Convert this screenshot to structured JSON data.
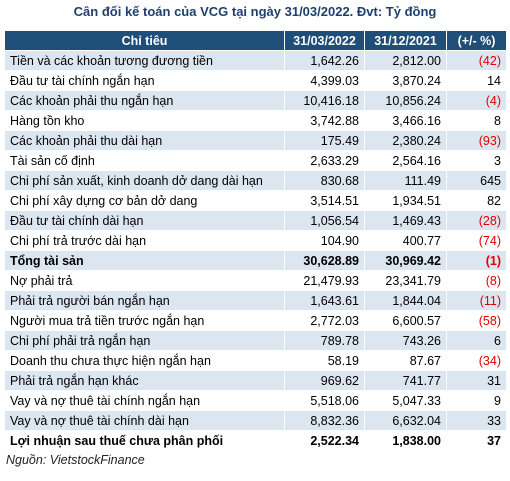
{
  "title": "Cân đối kế toán của VCG tại ngày 31/03/2022. Đvt: Tỷ đồng",
  "table": {
    "header": [
      "Chỉ tiêu",
      "31/03/2022",
      "31/12/2021",
      "(+/- %)"
    ],
    "rows": [
      {
        "cells": [
          "Tiền và các khoản tương đương tiền",
          "1,642.26",
          "2,812.00",
          "(42)"
        ]
      },
      {
        "cells": [
          "Đầu tư tài chính ngắn hạn",
          "4,399.03",
          "3,870.24",
          "14"
        ]
      },
      {
        "cells": [
          "Các khoản phải thu ngắn hạn",
          "10,416.18",
          "10,856.24",
          "(4)"
        ]
      },
      {
        "cells": [
          "Hàng tồn kho",
          "3,742.88",
          "3,466.16",
          "8"
        ]
      },
      {
        "cells": [
          "Các khoản phải thu dài hạn",
          "175.49",
          "2,380.24",
          "(93)"
        ]
      },
      {
        "cells": [
          "Tài sản cố định",
          "2,633.29",
          "2,564.16",
          "3"
        ]
      },
      {
        "cells": [
          "Chi phí sản xuất, kinh doanh dở dang dài hạn",
          "830.68",
          "111.49",
          "645"
        ]
      },
      {
        "cells": [
          "Chi phí xây dựng cơ bản dở dang",
          "3,514.51",
          "1,934.51",
          "82"
        ]
      },
      {
        "cells": [
          "Đầu tư tài chính dài hạn",
          "1,056.54",
          "1,469.43",
          "(28)"
        ]
      },
      {
        "cells": [
          "Chi phí trả trước dài hạn",
          "104.90",
          "400.77",
          "(74)"
        ]
      },
      {
        "cells": [
          "Tổng tài sản",
          "30,628.89",
          "30,969.42",
          "(1)"
        ],
        "bold": true
      },
      {
        "cells": [
          "Nợ phải trả",
          "21,479.93",
          "23,341.79",
          "(8)"
        ]
      },
      {
        "cells": [
          "Phải trả người bán ngắn hạn",
          "1,643.61",
          "1,844.04",
          "(11)"
        ]
      },
      {
        "cells": [
          "Người mua trả tiền trước ngắn hạn",
          "2,772.03",
          "6,600.57",
          "(58)"
        ]
      },
      {
        "cells": [
          "Chi phí phải trả ngắn hạn",
          "789.78",
          "743.26",
          "6"
        ]
      },
      {
        "cells": [
          "Doanh thu chưa thực hiện ngắn hạn",
          "58.19",
          "87.67",
          "(34)"
        ]
      },
      {
        "cells": [
          "Phải trả ngắn hạn khác",
          "969.62",
          "741.77",
          "31"
        ]
      },
      {
        "cells": [
          "Vay và nợ thuê tài chính ngắn hạn",
          "5,518.06",
          "5,047.33",
          "9"
        ]
      },
      {
        "cells": [
          "Vay và nợ thuê tài chính dài hạn",
          "8,832.36",
          "6,632.04",
          "33"
        ]
      },
      {
        "cells": [
          "Lợi nhuận sau thuế chưa phân phối",
          "2,522.34",
          "1,838.00",
          "37"
        ],
        "bold": true
      }
    ]
  },
  "source": "Nguồn: VietstockFinance"
}
